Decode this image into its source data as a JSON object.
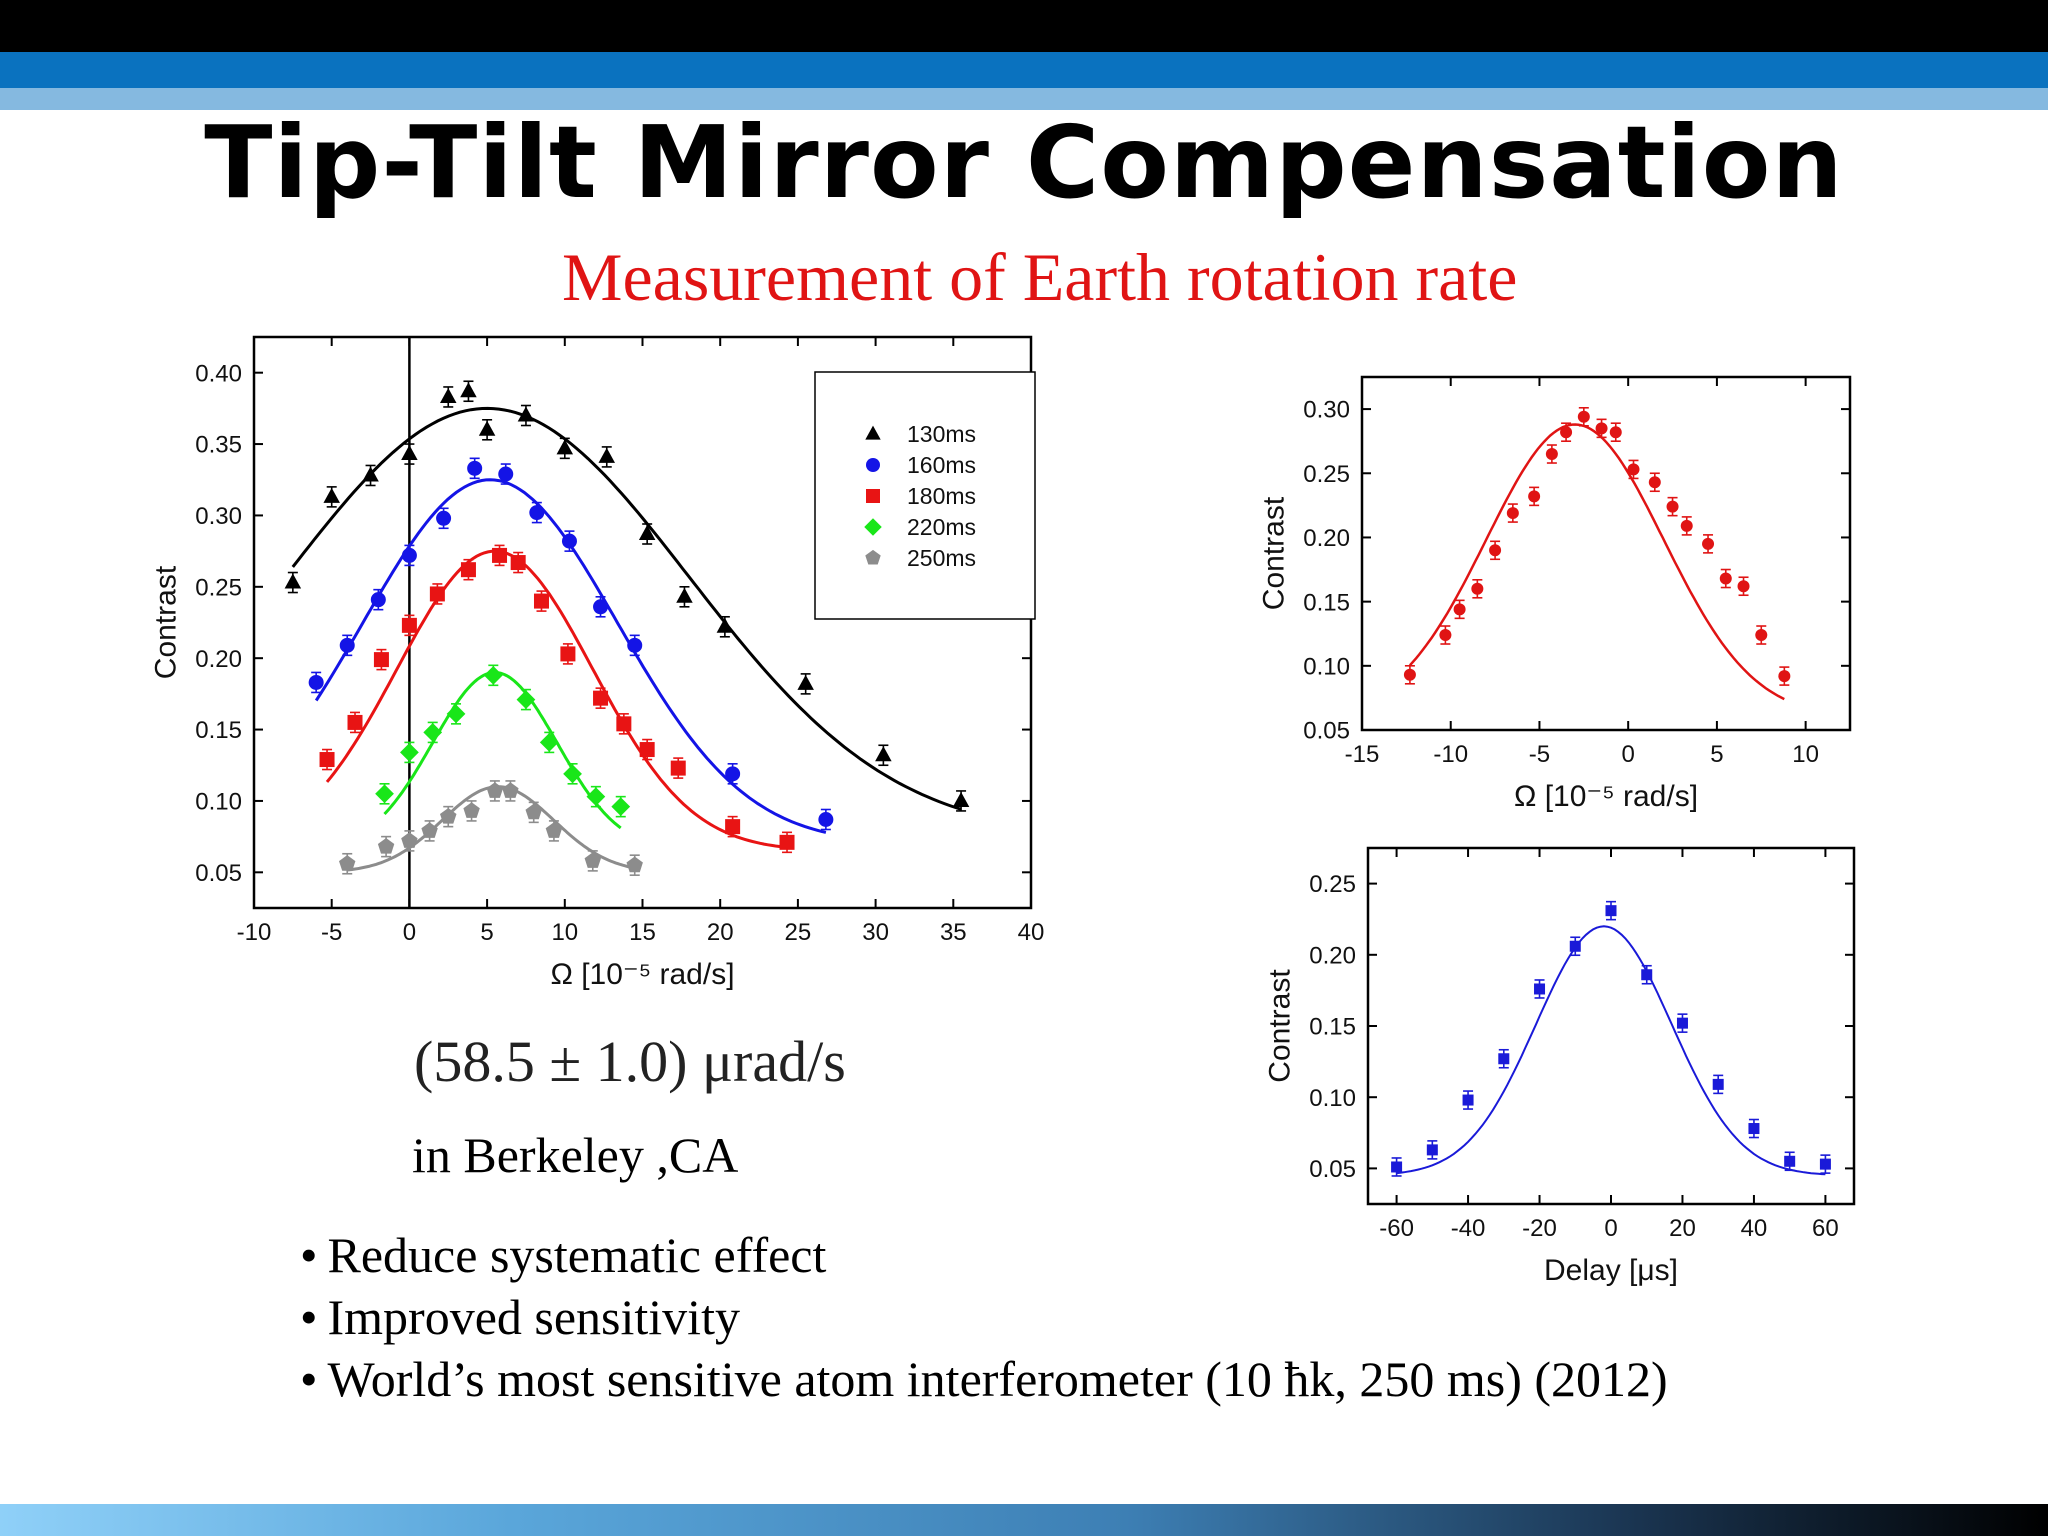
{
  "slide": {
    "title": "Tip-Tilt Mirror Compensation",
    "subtitle": "Measurement of Earth rotation rate",
    "result": "(58.5 ± 1.0)  μrad/s",
    "location": "in Berkeley ,CA",
    "bullets": [
      "Reduce systematic effect",
      "Improved sensitivity",
      "World’s most sensitive atom interferometer  (10 ħk, 250 ms) (2012)"
    ],
    "bullet_glyph": "•"
  },
  "chart_data": [
    {
      "type": "scatter",
      "xlabel": "Ω [10⁻⁵ rad/s]",
      "ylabel": "Contrast",
      "xlim": [
        -10,
        40
      ],
      "ylim": [
        0.025,
        0.425
      ],
      "xticks": [
        -10,
        -5,
        0,
        5,
        10,
        15,
        20,
        25,
        30,
        35,
        40
      ],
      "yticks": [
        0.05,
        0.1,
        0.15,
        0.2,
        0.25,
        0.3,
        0.35,
        0.4
      ],
      "ytick_labels": [
        "0.05",
        "0.10",
        "0.15",
        "0.20",
        "0.25",
        "0.30",
        "0.35",
        "0.40"
      ],
      "vline_x": 0,
      "legend_position": "top-right",
      "series": [
        {
          "name": "130ms",
          "color": "#000000",
          "marker": "triangle",
          "x": [
            -7.5,
            -5,
            -2.5,
            0,
            2.5,
            3.8,
            5,
            7.5,
            10,
            12.7,
            15.3,
            17.7,
            20.3,
            25.5,
            30.5,
            35.5
          ],
          "y": [
            0.253,
            0.313,
            0.328,
            0.343,
            0.383,
            0.387,
            0.36,
            0.37,
            0.347,
            0.341,
            0.287,
            0.243,
            0.222,
            0.182,
            0.132,
            0.1
          ],
          "fit": {
            "base": 0.075,
            "amp": 0.3,
            "mu": 5,
            "sigma": 13
          }
        },
        {
          "name": "160ms",
          "color": "#1414e6",
          "marker": "circle",
          "x": [
            -6,
            -4,
            -2,
            0,
            2.2,
            4.2,
            6.2,
            8.2,
            10.3,
            12.3,
            14.5,
            20.8,
            26.8
          ],
          "y": [
            0.183,
            0.209,
            0.241,
            0.272,
            0.298,
            0.333,
            0.329,
            0.302,
            0.282,
            0.236,
            0.209,
            0.119,
            0.087
          ],
          "fit": {
            "base": 0.07,
            "amp": 0.255,
            "mu": 5.2,
            "sigma": 8.2
          }
        },
        {
          "name": "180ms",
          "color": "#e81414",
          "marker": "square",
          "x": [
            -5.3,
            -3.5,
            -1.8,
            0,
            1.8,
            3.8,
            5.8,
            7,
            8.5,
            10.2,
            12.3,
            13.8,
            15.3,
            17.3,
            20.8,
            24.3
          ],
          "y": [
            0.129,
            0.155,
            0.199,
            0.223,
            0.245,
            0.262,
            0.272,
            0.267,
            0.24,
            0.203,
            0.172,
            0.154,
            0.136,
            0.123,
            0.082,
            0.071
          ],
          "fit": {
            "base": 0.065,
            "amp": 0.21,
            "mu": 5.5,
            "sigma": 6.3
          }
        },
        {
          "name": "220ms",
          "color": "#19e619",
          "marker": "diamond",
          "x": [
            -1.6,
            0,
            1.5,
            3,
            5.4,
            7.5,
            9,
            10.5,
            12,
            13.6
          ],
          "y": [
            0.105,
            0.134,
            0.148,
            0.161,
            0.188,
            0.171,
            0.141,
            0.119,
            0.103,
            0.096
          ],
          "fit": {
            "base": 0.065,
            "amp": 0.125,
            "mu": 5.5,
            "sigma": 4.0
          }
        },
        {
          "name": "250ms",
          "color": "#8c8c8c",
          "marker": "pentagon",
          "x": [
            -4,
            -1.5,
            0,
            1.3,
            2.5,
            4,
            5.5,
            6.5,
            8,
            9.3,
            11.8,
            14.5
          ],
          "y": [
            0.056,
            0.068,
            0.072,
            0.079,
            0.089,
            0.093,
            0.107,
            0.107,
            0.092,
            0.079,
            0.058,
            0.055
          ],
          "fit": {
            "base": 0.05,
            "amp": 0.06,
            "mu": 5.7,
            "sigma": 3.6
          }
        }
      ]
    },
    {
      "type": "scatter",
      "xlabel": "Ω [10⁻⁵ rad/s]",
      "ylabel": "Contrast",
      "xlim": [
        -15,
        12.5
      ],
      "ylim": [
        0.05,
        0.325
      ],
      "xticks": [
        -15,
        -10,
        -5,
        0,
        5,
        10
      ],
      "yticks": [
        0.05,
        0.1,
        0.15,
        0.2,
        0.25,
        0.3
      ],
      "ytick_labels": [
        "0.05",
        "0.10",
        "0.15",
        "0.20",
        "0.25",
        "0.30"
      ],
      "series": [
        {
          "color": "#e01414",
          "marker": "circle",
          "x": [
            -12.3,
            -10.3,
            -9.5,
            -8.5,
            -7.5,
            -6.5,
            -5.3,
            -4.3,
            -3.5,
            -2.5,
            -1.5,
            -0.7,
            0.3,
            1.5,
            2.5,
            3.3,
            4.5,
            5.5,
            6.5,
            7.5,
            8.8
          ],
          "y": [
            0.093,
            0.124,
            0.144,
            0.16,
            0.19,
            0.219,
            0.232,
            0.265,
            0.282,
            0.294,
            0.285,
            0.282,
            0.253,
            0.243,
            0.224,
            0.209,
            0.195,
            0.168,
            0.162,
            0.124,
            0.092
          ],
          "fit": {
            "base": 0.06,
            "amp": 0.228,
            "mu": -3.0,
            "sigma": 5.0
          }
        }
      ]
    },
    {
      "type": "scatter",
      "xlabel": "Delay [μs]",
      "ylabel": "Contrast",
      "xlim": [
        -68,
        68
      ],
      "ylim": [
        0.025,
        0.275
      ],
      "xticks": [
        -60,
        -40,
        -20,
        0,
        20,
        40,
        60
      ],
      "yticks": [
        0.05,
        0.1,
        0.15,
        0.2,
        0.25
      ],
      "ytick_labels": [
        "0.05",
        "0.10",
        "0.15",
        "0.20",
        "0.25"
      ],
      "series": [
        {
          "color": "#1a1ad8",
          "marker": "square",
          "x": [
            -60,
            -50,
            -40,
            -30,
            -20,
            -10,
            0,
            10,
            20,
            30,
            40,
            50,
            60
          ],
          "y": [
            0.051,
            0.063,
            0.098,
            0.127,
            0.176,
            0.206,
            0.231,
            0.186,
            0.152,
            0.109,
            0.078,
            0.055,
            0.053
          ],
          "fit": {
            "base": 0.045,
            "amp": 0.175,
            "mu": -2.0,
            "sigma": 19
          }
        }
      ]
    }
  ]
}
